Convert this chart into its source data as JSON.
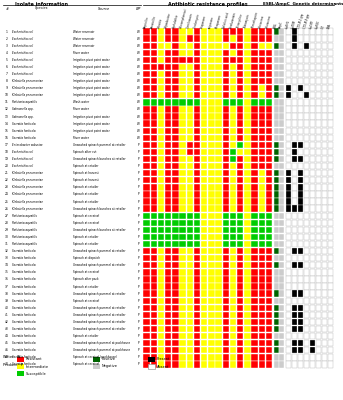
{
  "isolate_numbers": [
    1,
    2,
    3,
    4,
    5,
    6,
    7,
    8,
    9,
    10,
    11,
    12,
    13,
    14,
    15,
    16,
    17,
    18,
    19,
    20,
    21,
    22,
    23,
    24,
    25,
    26,
    27,
    28,
    29,
    30,
    31,
    32,
    33,
    34,
    35,
    36,
    37,
    38,
    39,
    40,
    41,
    42,
    43,
    44,
    45,
    46,
    47,
    48
  ],
  "species": [
    "Escherichia coli",
    "Escherichia coli",
    "Escherichia coli",
    "Escherichia coli",
    "Escherichia coli",
    "Escherichia coli",
    "Escherichia coli",
    "Klebsiella pneumoniae",
    "Klebsiella pneumoniae",
    "Klebsiella pneumoniae",
    "Ralstonia aquatilis",
    "Salmonella spp.",
    "Salmonella spp.",
    "Serratia fonticola",
    "Serratia fonticola",
    "Serratia fonticola",
    "Enterobacter asburiae",
    "Escherichia coli",
    "Escherichia coli",
    "Escherichia coli",
    "Klebsiella pneumoniae",
    "Klebsiella pneumoniae",
    "Klebsiella pneumoniae",
    "Klebsiella pneumoniae",
    "Klebsiella pneumoniae",
    "Klebsiella pneumoniae",
    "Ralstonia aquatilis",
    "Ralstonia aquatilis",
    "Ralstonia aquatilis",
    "Ralstonia aquatilis",
    "Ralstonia aquatilis",
    "Serratia fonticola",
    "Serratia fonticola",
    "Serratia fonticola",
    "Serratia fonticola",
    "Serratia fonticola",
    "Serratia fonticola",
    "Serratia fonticola",
    "Serratia fonticola",
    "Serratia fonticola",
    "Serratia fonticola",
    "Serratia fonticola",
    "Serratia fonticola",
    "Serratia fonticola",
    "Serratia fonticola",
    "Serratia fonticola",
    "Serratia fonticola",
    "Serratia fonticola"
  ],
  "source": [
    "Water reservoir",
    "Water reservoir",
    "Water reservoir",
    "River water",
    "Irrigation pivot point water",
    "Irrigation pivot point water",
    "Irrigation pivot point water",
    "Irrigation pivot point water",
    "Irrigation pivot point water",
    "Irrigation pivot point water",
    "Wash water",
    "River water",
    "Irrigation pivot point water",
    "Irrigation pivot point water",
    "Irrigation pivot point water",
    "River water",
    "Unwashed spinach pummel at retailer",
    "Spinach after cut",
    "Unwashed spinach bunches at retailer",
    "Spinach at retailer",
    "Spinach at harvest",
    "Spinach at harvest",
    "Spinach at retailer",
    "Spinach at retailer",
    "Spinach at retailer",
    "Unwashed spinach bunches at retailer",
    "Spinach at receival",
    "Spinach at receival",
    "Unwashed spinach bunches at retailer",
    "Spinach at retailer",
    "Spinach at retailer",
    "Unwashed spinach pummel at retailer",
    "Spinach at dispatch",
    "Unwashed spinach pummel at retailer",
    "Spinach at receival",
    "Spinach after pack",
    "Spinach at retailer",
    "Unwashed spinach pummel at retailer",
    "Spinach at receival",
    "Unwashed spinach pummel at retailer",
    "Unwashed spinach pummel at retailer",
    "Unwashed spinach pummel at retailer",
    "Unwashed spinach pummel at retailer",
    "Spinach at retailer",
    "Unwashed spinach pummel at packhouse",
    "Unwashed spinach pummel at packhouse",
    "Spinach at receival (packhouse)",
    "Spinach at receival"
  ],
  "water_produce": [
    "W",
    "W",
    "W",
    "W",
    "W",
    "W",
    "W",
    "W",
    "W",
    "W",
    "W",
    "W",
    "W",
    "W",
    "W",
    "W",
    "P",
    "P",
    "P",
    "P",
    "P",
    "P",
    "P",
    "P",
    "P",
    "P",
    "P",
    "P",
    "P",
    "P",
    "P",
    "P",
    "P",
    "P",
    "P",
    "P",
    "P",
    "P",
    "P",
    "P",
    "P",
    "P",
    "P",
    "P",
    "P",
    "P",
    "P",
    "P"
  ],
  "antibiotic_cols": [
    "Ampicillin",
    "Amoxicillin",
    "Cefoxitin",
    "Cefpodoxime",
    "Cephalothin",
    "Chloramphenicol",
    "Ciprofloxacin",
    "Clindamycin",
    "Ertapenem",
    "Imipenem",
    "Meropenem",
    "Nalidixic acid",
    "Nitrofurantoin",
    "Tetracycline",
    "Tobramycin",
    "Trimethoprim",
    "Cefotaxime",
    "Cefuroxime"
  ],
  "antibiotic_data": [
    [
      1,
      1,
      2,
      1,
      1,
      2,
      2,
      1,
      2,
      2,
      2,
      1,
      1,
      1,
      2,
      1,
      1,
      1
    ],
    [
      1,
      1,
      2,
      1,
      1,
      2,
      1,
      1,
      2,
      2,
      2,
      1,
      2,
      1,
      2,
      1,
      1,
      1
    ],
    [
      1,
      1,
      2,
      2,
      1,
      2,
      2,
      1,
      2,
      2,
      2,
      2,
      1,
      1,
      2,
      1,
      2,
      2
    ],
    [
      1,
      1,
      2,
      1,
      1,
      2,
      2,
      1,
      2,
      2,
      2,
      1,
      2,
      1,
      2,
      1,
      1,
      1
    ],
    [
      1,
      1,
      2,
      1,
      1,
      1,
      1,
      1,
      2,
      2,
      2,
      1,
      1,
      1,
      2,
      1,
      1,
      1
    ],
    [
      1,
      1,
      1,
      1,
      1,
      2,
      2,
      1,
      2,
      2,
      2,
      1,
      2,
      1,
      2,
      1,
      1,
      1
    ],
    [
      1,
      1,
      2,
      1,
      1,
      2,
      2,
      1,
      2,
      2,
      2,
      1,
      2,
      1,
      2,
      1,
      1,
      1
    ],
    [
      1,
      1,
      2,
      1,
      1,
      2,
      2,
      1,
      2,
      2,
      2,
      1,
      2,
      1,
      2,
      1,
      1,
      1
    ],
    [
      1,
      1,
      2,
      1,
      1,
      2,
      2,
      1,
      2,
      2,
      2,
      1,
      2,
      1,
      2,
      1,
      2,
      1
    ],
    [
      1,
      1,
      2,
      1,
      1,
      2,
      2,
      1,
      2,
      2,
      2,
      1,
      2,
      1,
      2,
      1,
      2,
      1
    ],
    [
      3,
      3,
      3,
      3,
      3,
      3,
      3,
      3,
      2,
      2,
      2,
      3,
      3,
      3,
      2,
      3,
      3,
      3
    ],
    [
      1,
      1,
      2,
      1,
      1,
      2,
      2,
      1,
      2,
      2,
      2,
      1,
      2,
      1,
      2,
      1,
      1,
      1
    ],
    [
      1,
      1,
      2,
      1,
      1,
      2,
      2,
      1,
      2,
      2,
      2,
      1,
      2,
      1,
      2,
      1,
      1,
      1
    ],
    [
      1,
      1,
      2,
      1,
      1,
      2,
      2,
      1,
      2,
      2,
      2,
      1,
      2,
      1,
      2,
      1,
      1,
      1
    ],
    [
      1,
      1,
      2,
      1,
      1,
      2,
      2,
      1,
      2,
      2,
      2,
      1,
      2,
      1,
      2,
      1,
      1,
      1
    ],
    [
      1,
      1,
      2,
      1,
      1,
      2,
      2,
      1,
      2,
      2,
      2,
      1,
      2,
      1,
      2,
      1,
      1,
      1
    ],
    [
      1,
      1,
      2,
      1,
      1,
      2,
      1,
      1,
      2,
      2,
      2,
      1,
      2,
      3,
      2,
      1,
      1,
      1
    ],
    [
      1,
      1,
      2,
      1,
      1,
      2,
      1,
      1,
      2,
      2,
      2,
      1,
      3,
      2,
      2,
      1,
      1,
      1
    ],
    [
      1,
      1,
      2,
      1,
      1,
      2,
      2,
      1,
      2,
      2,
      2,
      1,
      3,
      1,
      2,
      1,
      1,
      1
    ],
    [
      1,
      1,
      2,
      1,
      1,
      2,
      2,
      1,
      2,
      2,
      2,
      1,
      2,
      1,
      2,
      1,
      1,
      1
    ],
    [
      1,
      1,
      2,
      1,
      1,
      2,
      2,
      1,
      2,
      2,
      2,
      1,
      2,
      1,
      2,
      1,
      2,
      1
    ],
    [
      1,
      1,
      2,
      1,
      1,
      2,
      2,
      1,
      2,
      2,
      2,
      1,
      2,
      1,
      2,
      1,
      2,
      1
    ],
    [
      1,
      1,
      2,
      1,
      1,
      2,
      2,
      1,
      2,
      2,
      2,
      1,
      2,
      1,
      2,
      1,
      2,
      1
    ],
    [
      1,
      1,
      2,
      1,
      1,
      2,
      2,
      1,
      2,
      2,
      2,
      1,
      2,
      1,
      2,
      1,
      2,
      1
    ],
    [
      1,
      1,
      2,
      1,
      1,
      2,
      2,
      1,
      2,
      2,
      2,
      1,
      2,
      1,
      2,
      1,
      2,
      1
    ],
    [
      1,
      1,
      2,
      1,
      1,
      2,
      2,
      1,
      2,
      2,
      2,
      1,
      2,
      1,
      2,
      1,
      2,
      1
    ],
    [
      3,
      3,
      3,
      3,
      3,
      3,
      3,
      3,
      2,
      2,
      2,
      3,
      3,
      3,
      2,
      3,
      3,
      3
    ],
    [
      3,
      3,
      3,
      3,
      3,
      3,
      3,
      3,
      2,
      2,
      2,
      3,
      3,
      3,
      2,
      3,
      3,
      3
    ],
    [
      3,
      3,
      3,
      3,
      3,
      3,
      3,
      3,
      2,
      2,
      2,
      3,
      3,
      3,
      2,
      3,
      3,
      3
    ],
    [
      3,
      3,
      3,
      3,
      3,
      3,
      3,
      3,
      2,
      2,
      2,
      3,
      3,
      3,
      2,
      3,
      3,
      3
    ],
    [
      3,
      3,
      3,
      3,
      3,
      3,
      3,
      3,
      2,
      2,
      2,
      3,
      3,
      3,
      2,
      3,
      3,
      3
    ],
    [
      1,
      1,
      2,
      1,
      1,
      2,
      2,
      1,
      2,
      2,
      2,
      1,
      2,
      1,
      2,
      1,
      1,
      1
    ],
    [
      1,
      1,
      2,
      1,
      1,
      2,
      2,
      1,
      2,
      2,
      2,
      1,
      2,
      1,
      2,
      1,
      1,
      1
    ],
    [
      1,
      1,
      2,
      1,
      1,
      2,
      2,
      1,
      2,
      2,
      2,
      1,
      2,
      1,
      2,
      1,
      1,
      1
    ],
    [
      1,
      1,
      2,
      1,
      1,
      2,
      2,
      1,
      2,
      2,
      2,
      1,
      2,
      1,
      2,
      1,
      1,
      1
    ],
    [
      1,
      1,
      2,
      1,
      1,
      2,
      2,
      1,
      2,
      2,
      2,
      1,
      2,
      1,
      2,
      1,
      1,
      1
    ],
    [
      1,
      1,
      2,
      1,
      1,
      2,
      2,
      1,
      2,
      2,
      2,
      1,
      2,
      1,
      2,
      1,
      1,
      1
    ],
    [
      1,
      1,
      2,
      1,
      1,
      2,
      2,
      1,
      2,
      2,
      2,
      1,
      2,
      1,
      2,
      1,
      1,
      1
    ],
    [
      1,
      1,
      2,
      1,
      1,
      2,
      2,
      1,
      2,
      2,
      2,
      1,
      2,
      1,
      2,
      1,
      1,
      1
    ],
    [
      1,
      1,
      2,
      1,
      1,
      2,
      2,
      1,
      2,
      2,
      2,
      1,
      2,
      1,
      2,
      1,
      1,
      1
    ],
    [
      1,
      1,
      2,
      1,
      1,
      2,
      2,
      1,
      2,
      2,
      2,
      1,
      2,
      1,
      2,
      1,
      1,
      1
    ],
    [
      1,
      1,
      2,
      1,
      1,
      2,
      2,
      1,
      2,
      2,
      2,
      1,
      2,
      1,
      2,
      1,
      1,
      1
    ],
    [
      1,
      1,
      2,
      1,
      1,
      2,
      2,
      1,
      2,
      2,
      2,
      1,
      2,
      1,
      2,
      1,
      1,
      1
    ],
    [
      1,
      1,
      2,
      1,
      1,
      2,
      2,
      1,
      2,
      2,
      2,
      1,
      2,
      1,
      2,
      1,
      1,
      1
    ],
    [
      1,
      1,
      2,
      1,
      1,
      2,
      2,
      1,
      2,
      2,
      2,
      1,
      2,
      1,
      2,
      1,
      1,
      1
    ],
    [
      1,
      1,
      2,
      1,
      1,
      2,
      2,
      1,
      2,
      2,
      2,
      1,
      2,
      1,
      2,
      1,
      1,
      1
    ],
    [
      1,
      1,
      2,
      1,
      1,
      2,
      2,
      1,
      2,
      2,
      2,
      1,
      2,
      1,
      2,
      1,
      1,
      1
    ],
    [
      1,
      1,
      2,
      1,
      1,
      2,
      2,
      1,
      2,
      2,
      2,
      1,
      2,
      1,
      2,
      1,
      1,
      1
    ]
  ],
  "esbl_ampc": [
    1,
    0,
    1,
    0,
    0,
    0,
    0,
    0,
    1,
    1,
    0,
    0,
    0,
    0,
    0,
    0,
    1,
    1,
    1,
    0,
    1,
    1,
    1,
    1,
    1,
    1,
    0,
    0,
    0,
    0,
    0,
    1,
    0,
    1,
    0,
    0,
    0,
    1,
    0,
    1,
    1,
    1,
    1,
    0,
    1,
    1,
    0,
    0
  ],
  "ampc_prod": [
    0,
    0,
    0,
    0,
    0,
    0,
    0,
    0,
    0,
    0,
    0,
    0,
    0,
    0,
    0,
    0,
    0,
    0,
    0,
    0,
    0,
    0,
    0,
    0,
    0,
    0,
    0,
    0,
    0,
    0,
    0,
    0,
    0,
    0,
    0,
    0,
    0,
    0,
    0,
    0,
    0,
    0,
    0,
    0,
    0,
    0,
    0,
    0
  ],
  "genetic_cols": [
    "blaSHV",
    "blaTEM",
    "CTX-M-1 grp",
    "CTX-M-9 grp",
    "blaCMY",
    "blaFOX",
    "CIT",
    "DHA"
  ],
  "genetic_data": [
    [
      0,
      1,
      0,
      0,
      0,
      0,
      0,
      0
    ],
    [
      0,
      1,
      0,
      0,
      0,
      0,
      0,
      0
    ],
    [
      0,
      1,
      0,
      1,
      0,
      0,
      0,
      0
    ],
    [
      0,
      0,
      0,
      0,
      0,
      0,
      0,
      0
    ],
    [
      0,
      0,
      0,
      0,
      0,
      0,
      0,
      0
    ],
    [
      0,
      0,
      0,
      0,
      0,
      0,
      0,
      0
    ],
    [
      0,
      0,
      0,
      0,
      0,
      0,
      0,
      0
    ],
    [
      0,
      0,
      0,
      0,
      0,
      0,
      0,
      0
    ],
    [
      1,
      0,
      1,
      0,
      0,
      0,
      0,
      0
    ],
    [
      1,
      0,
      0,
      1,
      0,
      0,
      0,
      0
    ],
    [
      0,
      0,
      0,
      0,
      0,
      0,
      0,
      0
    ],
    [
      0,
      0,
      0,
      0,
      0,
      0,
      0,
      0
    ],
    [
      0,
      0,
      0,
      0,
      0,
      0,
      0,
      0
    ],
    [
      0,
      0,
      0,
      0,
      0,
      0,
      0,
      0
    ],
    [
      0,
      0,
      0,
      0,
      0,
      0,
      0,
      0
    ],
    [
      0,
      0,
      0,
      0,
      0,
      0,
      0,
      0
    ],
    [
      0,
      1,
      1,
      0,
      0,
      0,
      0,
      0
    ],
    [
      0,
      1,
      0,
      0,
      0,
      0,
      0,
      0
    ],
    [
      0,
      1,
      1,
      0,
      0,
      0,
      0,
      0
    ],
    [
      0,
      0,
      0,
      0,
      0,
      0,
      0,
      0
    ],
    [
      1,
      0,
      1,
      0,
      0,
      0,
      0,
      0
    ],
    [
      1,
      0,
      1,
      0,
      0,
      0,
      0,
      0
    ],
    [
      1,
      0,
      1,
      0,
      0,
      0,
      0,
      0
    ],
    [
      1,
      0,
      1,
      0,
      0,
      0,
      0,
      0
    ],
    [
      1,
      0,
      1,
      0,
      0,
      0,
      0,
      0
    ],
    [
      1,
      1,
      1,
      0,
      0,
      0,
      0,
      0
    ],
    [
      0,
      0,
      0,
      0,
      0,
      0,
      0,
      0
    ],
    [
      0,
      0,
      0,
      0,
      0,
      0,
      0,
      0
    ],
    [
      0,
      0,
      0,
      0,
      0,
      0,
      0,
      0
    ],
    [
      0,
      0,
      0,
      0,
      0,
      0,
      0,
      0
    ],
    [
      0,
      0,
      0,
      0,
      0,
      0,
      0,
      0
    ],
    [
      0,
      1,
      1,
      0,
      0,
      0,
      0,
      0
    ],
    [
      0,
      0,
      0,
      0,
      0,
      0,
      0,
      0
    ],
    [
      0,
      1,
      1,
      0,
      0,
      0,
      0,
      0
    ],
    [
      0,
      0,
      0,
      0,
      0,
      0,
      0,
      0
    ],
    [
      0,
      0,
      0,
      0,
      0,
      0,
      0,
      0
    ],
    [
      0,
      0,
      0,
      0,
      0,
      0,
      0,
      0
    ],
    [
      0,
      1,
      1,
      0,
      0,
      0,
      0,
      0
    ],
    [
      0,
      0,
      0,
      0,
      0,
      0,
      0,
      0
    ],
    [
      0,
      1,
      1,
      0,
      0,
      0,
      0,
      0
    ],
    [
      0,
      1,
      1,
      0,
      0,
      0,
      0,
      0
    ],
    [
      0,
      1,
      1,
      0,
      0,
      0,
      0,
      0
    ],
    [
      0,
      1,
      1,
      0,
      0,
      0,
      0,
      0
    ],
    [
      0,
      0,
      0,
      0,
      0,
      0,
      0,
      0
    ],
    [
      0,
      1,
      1,
      0,
      1,
      0,
      0,
      0
    ],
    [
      0,
      1,
      1,
      0,
      1,
      0,
      0,
      0
    ],
    [
      0,
      0,
      0,
      0,
      0,
      0,
      0,
      0
    ],
    [
      0,
      0,
      0,
      0,
      0,
      0,
      0,
      0
    ]
  ],
  "color_resistant": "#FF0000",
  "color_intermediate": "#FFFF00",
  "color_susceptible": "#00CC00",
  "color_esbl_positive": "#006400",
  "color_genetic_present": "#000000",
  "color_genetic_absent": "#FFFFFF"
}
